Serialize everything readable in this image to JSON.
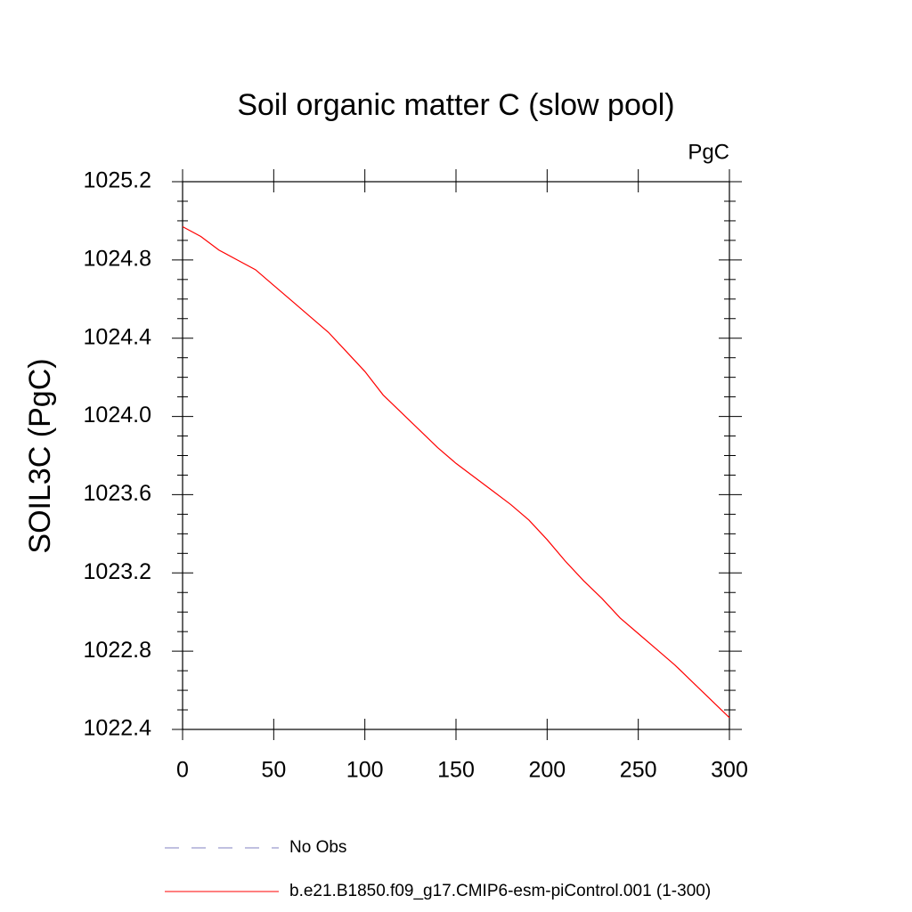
{
  "chart_data": {
    "type": "line",
    "title": "Soil organic matter C (slow pool)",
    "units": "PgC",
    "y_label": "SOIL3C  (PgC)",
    "x": [
      0,
      10,
      20,
      30,
      40,
      50,
      60,
      70,
      80,
      90,
      100,
      110,
      120,
      130,
      140,
      150,
      160,
      170,
      180,
      190,
      200,
      210,
      220,
      230,
      240,
      250,
      260,
      270,
      280,
      290,
      300
    ],
    "series": [
      {
        "name": "b.e21.B1850.f09_g17.CMIP6-esm-piControl.001 (1-300)",
        "color": "#ff0000",
        "values": [
          1024.97,
          1024.92,
          1024.85,
          1024.8,
          1024.75,
          1024.67,
          1024.59,
          1024.51,
          1024.43,
          1024.33,
          1024.23,
          1024.11,
          1024.02,
          1023.93,
          1023.84,
          1023.76,
          1023.69,
          1023.62,
          1023.55,
          1023.47,
          1023.37,
          1023.26,
          1023.16,
          1023.07,
          1022.97,
          1022.89,
          1022.81,
          1022.73,
          1022.64,
          1022.55,
          1022.46
        ]
      }
    ],
    "extra_legend": [
      {
        "name": "No Obs",
        "color": "#8080c0",
        "dashed": true
      }
    ],
    "xlim": [
      0,
      300
    ],
    "xticks": [
      0,
      50,
      100,
      150,
      200,
      250,
      300
    ],
    "ylim": [
      1022.4,
      1025.2
    ],
    "yticks": [
      1022.4,
      1022.8,
      {
        "value": 1023.2,
        "label": "1023.2"
      },
      1023.6,
      {
        "value": 1024,
        "label": "1024.0"
      },
      1024.4,
      1024.8,
      1025.2
    ],
    "yminorticks": [
      1022.5,
      1022.6,
      1022.7,
      1022.9,
      1023.0,
      1023.1,
      1023.3,
      1023.4,
      1023.5,
      1023.7,
      1023.8,
      1023.9,
      1024.1,
      1024.2,
      1024.3,
      1024.5,
      1024.6,
      1024.7,
      1024.9,
      1025.0,
      1025.1
    ]
  }
}
